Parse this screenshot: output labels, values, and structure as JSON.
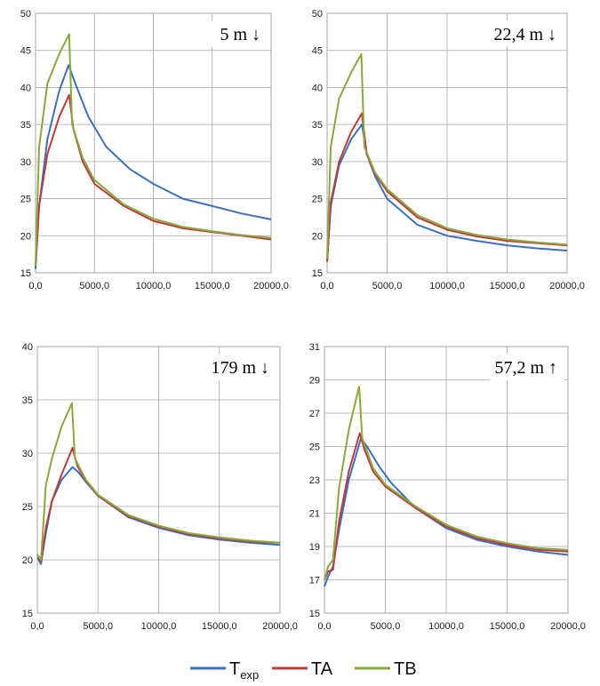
{
  "colors": {
    "Texp": "#3a6fc4",
    "TA": "#c0393b",
    "TB": "#86ab3a"
  },
  "legend": [
    {
      "key": "Texp",
      "main": "T",
      "sub": "exp"
    },
    {
      "key": "TA",
      "main": "TA",
      "sub": ""
    },
    {
      "key": "TB",
      "main": "TB",
      "sub": ""
    }
  ],
  "chart_data": [
    {
      "type": "line",
      "panel_label": "5 m ↓",
      "xlim": [
        0,
        20000
      ],
      "ylim": [
        15,
        50
      ],
      "x_ticks": [
        "0,0",
        "5000,0",
        "10000,0",
        "15000,0",
        "20000,0"
      ],
      "y_ticks": [
        "15",
        "20",
        "25",
        "30",
        "35",
        "40",
        "45",
        "50"
      ],
      "grid": true,
      "series": [
        {
          "name": "Texp",
          "x": [
            0,
            300,
            1000,
            2000,
            2800,
            3500,
            4500,
            6000,
            8000,
            10000,
            12500,
            15000,
            17500,
            20000
          ],
          "y": [
            15.5,
            24.0,
            33.0,
            39.5,
            43.0,
            40.0,
            36.0,
            32.0,
            29.0,
            27.0,
            25.0,
            24.0,
            23.0,
            22.2
          ]
        },
        {
          "name": "TA",
          "x": [
            0,
            300,
            1000,
            2000,
            2850,
            3200,
            4000,
            5000,
            7500,
            10000,
            12500,
            15000,
            17500,
            20000
          ],
          "y": [
            16.0,
            24.0,
            31.0,
            36.0,
            39.0,
            34.5,
            30.0,
            27.0,
            24.0,
            22.0,
            21.0,
            20.5,
            20.0,
            19.5
          ]
        },
        {
          "name": "TB",
          "x": [
            0,
            300,
            1000,
            2000,
            2850,
            3100,
            4000,
            5000,
            7500,
            10000,
            12500,
            15000,
            17500,
            20000
          ],
          "y": [
            16.0,
            32.0,
            40.5,
            44.5,
            47.2,
            35.0,
            30.5,
            27.5,
            24.2,
            22.3,
            21.2,
            20.6,
            20.1,
            19.7
          ]
        }
      ]
    },
    {
      "type": "line",
      "panel_label": "22,4 m ↓",
      "xlim": [
        0,
        20000
      ],
      "ylim": [
        15,
        50
      ],
      "x_ticks": [
        "0,0",
        "5000,0",
        "10000,0",
        "15000,0",
        "20000,0"
      ],
      "y_ticks": [
        "15",
        "20",
        "25",
        "30",
        "35",
        "40",
        "45",
        "50"
      ],
      "grid": true,
      "series": [
        {
          "name": "Texp",
          "x": [
            0,
            300,
            1000,
            2000,
            2900,
            3300,
            4000,
            5000,
            7500,
            10000,
            12500,
            15000,
            17500,
            20000
          ],
          "y": [
            16.5,
            24.0,
            29.5,
            33.0,
            35.0,
            31.0,
            28.0,
            25.0,
            21.5,
            20.0,
            19.3,
            18.7,
            18.3,
            18.0
          ]
        },
        {
          "name": "TA",
          "x": [
            0,
            300,
            1000,
            2000,
            2900,
            3300,
            4000,
            5000,
            7500,
            10000,
            12500,
            15000,
            17500,
            20000
          ],
          "y": [
            16.5,
            24.5,
            30.0,
            34.0,
            36.5,
            31.0,
            28.3,
            26.0,
            22.5,
            20.8,
            19.9,
            19.3,
            19.0,
            18.7
          ]
        },
        {
          "name": "TB",
          "x": [
            0,
            300,
            1000,
            2000,
            2850,
            3100,
            4000,
            5000,
            7500,
            10000,
            12500,
            15000,
            17500,
            20000
          ],
          "y": [
            17.0,
            32.0,
            38.5,
            42.0,
            44.5,
            32.0,
            28.5,
            26.3,
            22.8,
            21.0,
            20.1,
            19.5,
            19.1,
            18.8
          ]
        }
      ]
    },
    {
      "type": "line",
      "panel_label": "179 m ↓",
      "xlim": [
        0,
        20000
      ],
      "ylim": [
        15,
        40
      ],
      "x_ticks": [
        "0,0",
        "5000,0",
        "10000,0",
        "15000,0",
        "20000,0"
      ],
      "y_ticks": [
        "15",
        "20",
        "25",
        "30",
        "35",
        "40"
      ],
      "grid": true,
      "series": [
        {
          "name": "Texp",
          "x": [
            0,
            300,
            700,
            1200,
            2000,
            2900,
            3400,
            4000,
            5000,
            7500,
            10000,
            12500,
            15000,
            17500,
            20000
          ],
          "y": [
            20.2,
            19.6,
            22.5,
            25.5,
            27.5,
            28.7,
            28.2,
            27.3,
            26.0,
            24.0,
            23.0,
            22.3,
            21.9,
            21.6,
            21.4
          ]
        },
        {
          "name": "TA",
          "x": [
            0,
            300,
            700,
            1200,
            2000,
            2900,
            3300,
            4000,
            5000,
            7500,
            10000,
            12500,
            15000,
            17500,
            20000
          ],
          "y": [
            20.5,
            19.8,
            23.0,
            25.5,
            28.0,
            30.5,
            28.8,
            27.4,
            26.0,
            24.1,
            23.1,
            22.4,
            22.0,
            21.7,
            21.6
          ]
        },
        {
          "name": "TB",
          "x": [
            0,
            300,
            700,
            1200,
            2000,
            2850,
            3100,
            4000,
            5000,
            7500,
            10000,
            12500,
            15000,
            17500,
            20000
          ],
          "y": [
            20.5,
            20.0,
            27.0,
            29.5,
            32.5,
            34.7,
            29.5,
            27.5,
            26.1,
            24.2,
            23.2,
            22.5,
            22.1,
            21.8,
            21.6
          ]
        }
      ]
    },
    {
      "type": "line",
      "panel_label": "57,2 m ↑",
      "xlim": [
        0,
        20000
      ],
      "ylim": [
        15,
        31
      ],
      "x_ticks": [
        "0,0",
        "5000,0",
        "10000,0",
        "15000,0",
        "20000,0"
      ],
      "y_ticks": [
        "15",
        "17",
        "19",
        "21",
        "23",
        "25",
        "27",
        "29",
        "31"
      ],
      "grid": true,
      "series": [
        {
          "name": "Texp",
          "x": [
            0,
            300,
            700,
            1200,
            2000,
            3000,
            3500,
            4500,
            5500,
            7500,
            10000,
            12500,
            15000,
            17500,
            20000
          ],
          "y": [
            16.6,
            17.2,
            17.8,
            20.0,
            23.0,
            25.5,
            25.0,
            23.8,
            22.8,
            21.3,
            20.1,
            19.4,
            19.0,
            18.7,
            18.5
          ]
        },
        {
          "name": "TA",
          "x": [
            0,
            300,
            700,
            1200,
            2000,
            2900,
            3300,
            4000,
            5000,
            7500,
            10000,
            12500,
            15000,
            17500,
            20000
          ],
          "y": [
            17.0,
            17.5,
            17.6,
            20.5,
            23.5,
            25.8,
            24.8,
            23.5,
            22.6,
            21.3,
            20.2,
            19.5,
            19.1,
            18.8,
            18.7
          ]
        },
        {
          "name": "TB",
          "x": [
            0,
            300,
            700,
            1200,
            2000,
            2850,
            3100,
            4000,
            5000,
            7500,
            10000,
            12500,
            15000,
            17500,
            20000
          ],
          "y": [
            17.0,
            17.8,
            18.2,
            22.5,
            26.0,
            28.6,
            25.5,
            23.7,
            22.7,
            21.4,
            20.3,
            19.6,
            19.2,
            18.9,
            18.8
          ]
        }
      ]
    }
  ]
}
